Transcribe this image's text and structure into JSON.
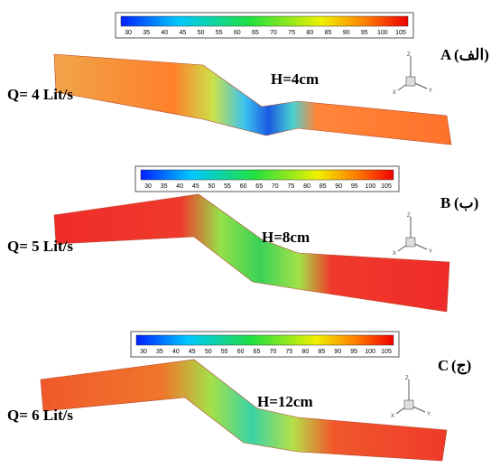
{
  "colorbar_ticks": [
    30,
    35,
    40,
    45,
    50,
    55,
    60,
    65,
    70,
    75,
    80,
    85,
    90,
    95,
    100,
    105
  ],
  "triad_labels": {
    "z": "Z",
    "x": "X",
    "y": "Y"
  },
  "panels": [
    {
      "letter": "A",
      "persian": "(الف)",
      "discharge": "Q= 4 Lit/s",
      "height": "H=4cm"
    },
    {
      "letter": "B",
      "persian": "(ب)",
      "discharge": "Q= 5 Lit/s",
      "height": "H=8cm"
    },
    {
      "letter": "C",
      "persian": "(ج)",
      "discharge": "Q= 6 Lit/s",
      "height": "H=12cm"
    }
  ]
}
